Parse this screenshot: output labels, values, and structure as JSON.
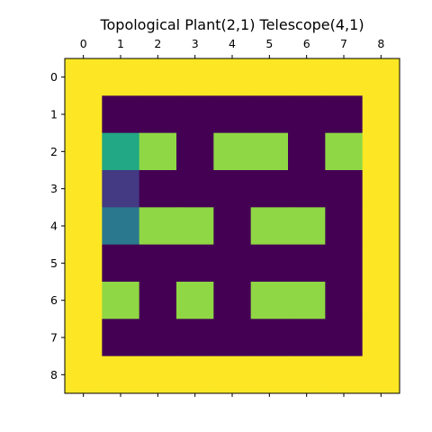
{
  "chart_data": {
    "type": "heatmap",
    "title": "Topological Plant(2,1) Telescope(4,1)",
    "xlabel": "",
    "ylabel": "",
    "x_ticks": [
      "0",
      "1",
      "2",
      "3",
      "4",
      "5",
      "6",
      "7",
      "8"
    ],
    "y_ticks": [
      "0",
      "1",
      "2",
      "3",
      "4",
      "5",
      "6",
      "7",
      "8"
    ],
    "x_axis_position": "top",
    "grid": false,
    "colormap": "viridis",
    "value_range": [
      0,
      1
    ],
    "grid_values": [
      [
        1.0,
        1.0,
        1.0,
        1.0,
        1.0,
        1.0,
        1.0,
        1.0,
        1.0
      ],
      [
        1.0,
        0.0,
        0.0,
        0.0,
        0.0,
        0.0,
        0.0,
        0.0,
        1.0
      ],
      [
        1.0,
        0.6,
        0.8,
        0.0,
        0.8,
        0.8,
        0.0,
        0.8,
        1.0
      ],
      [
        1.0,
        0.1,
        0.0,
        0.0,
        0.0,
        0.0,
        0.0,
        0.0,
        1.0
      ],
      [
        1.0,
        0.4,
        0.8,
        0.8,
        0.0,
        0.8,
        0.8,
        0.0,
        1.0
      ],
      [
        1.0,
        0.0,
        0.0,
        0.0,
        0.0,
        0.0,
        0.0,
        0.0,
        1.0
      ],
      [
        1.0,
        0.8,
        0.0,
        0.8,
        0.0,
        0.8,
        0.8,
        0.0,
        1.0
      ],
      [
        1.0,
        0.0,
        0.0,
        0.0,
        0.0,
        0.0,
        0.0,
        0.0,
        1.0
      ],
      [
        1.0,
        1.0,
        1.0,
        1.0,
        1.0,
        1.0,
        1.0,
        1.0,
        1.0
      ]
    ],
    "colors": {
      "0.0": "#440154",
      "0.1": "#443983",
      "0.4": "#2a788e",
      "0.6": "#22a884",
      "0.8": "#8fd744",
      "1.0": "#fde725"
    }
  }
}
